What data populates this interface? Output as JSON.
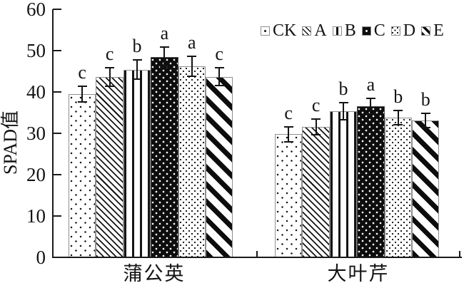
{
  "chart_data": {
    "type": "bar",
    "title": "",
    "ylabel": "SPAD值",
    "xlabel": "",
    "ylim": [
      0,
      60
    ],
    "yticks": [
      0,
      10,
      20,
      30,
      40,
      50,
      60
    ],
    "categories": [
      "蒲公英",
      "大叶芹"
    ],
    "grid": false,
    "legend_position": "top-right",
    "legend": [
      "CK",
      "A",
      "B",
      "C",
      "D",
      "E"
    ],
    "series": [
      {
        "name": "CK",
        "pattern": "dots-sparse",
        "values": [
          39.5,
          29.8
        ],
        "errors": [
          1.9,
          1.8
        ],
        "sig_letters": [
          "c",
          "c"
        ]
      },
      {
        "name": "A",
        "pattern": "hatch-thin-diagonal",
        "values": [
          43.6,
          31.5
        ],
        "errors": [
          2.2,
          1.9
        ],
        "sig_letters": [
          "c",
          "c"
        ]
      },
      {
        "name": "B",
        "pattern": "vertical-stripes",
        "values": [
          45.4,
          35.3
        ],
        "errors": [
          2.3,
          2.1
        ],
        "sig_letters": [
          "b",
          "b"
        ]
      },
      {
        "name": "C",
        "pattern": "black-with-white-dots",
        "values": [
          48.5,
          36.5
        ],
        "errors": [
          2.4,
          1.9
        ],
        "sig_letters": [
          "a",
          "a"
        ]
      },
      {
        "name": "D",
        "pattern": "dots-dense",
        "values": [
          46.2,
          33.8
        ],
        "errors": [
          2.4,
          1.7
        ],
        "sig_letters": [
          "a",
          "b"
        ]
      },
      {
        "name": "E",
        "pattern": "hatch-thick-diagonal",
        "values": [
          43.7,
          33.1
        ],
        "errors": [
          2.2,
          1.8
        ],
        "sig_letters": [
          "c",
          "b"
        ]
      }
    ]
  },
  "colors": {
    "background": "#ffffff",
    "ink": "#141414",
    "axis": "#1a1a1a",
    "bar_fill": "#ffffff",
    "bar_outline": "#8f8f8f"
  }
}
